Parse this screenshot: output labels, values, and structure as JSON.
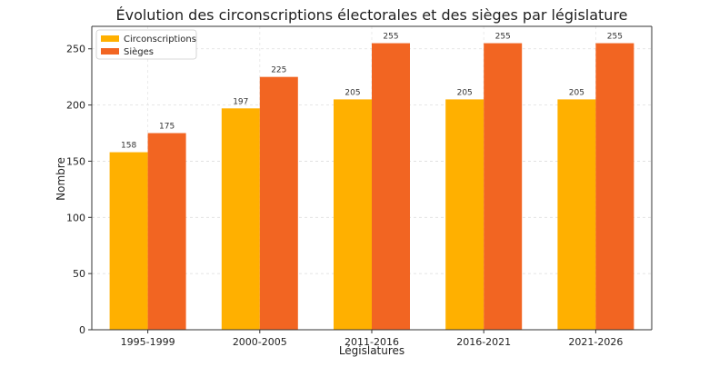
{
  "chart_data": {
    "type": "bar",
    "title": "Évolution des circonscriptions électorales et des sièges par législature",
    "xlabel": "Législatures",
    "ylabel": "Nombre",
    "categories": [
      "1995-1999",
      "2000-2005",
      "2011-2016",
      "2016-2021",
      "2021-2026"
    ],
    "series": [
      {
        "name": "Circonscriptions",
        "values": [
          158,
          197,
          205,
          205,
          205
        ],
        "color": "#FFB000"
      },
      {
        "name": "Sièges",
        "values": [
          175,
          225,
          255,
          255,
          255
        ],
        "color": "#F26522"
      }
    ],
    "ylim": [
      0,
      270
    ],
    "yticks": [
      0,
      50,
      100,
      150,
      200,
      250
    ],
    "grid": true,
    "legend_position": "top-left",
    "data_labels": true
  }
}
